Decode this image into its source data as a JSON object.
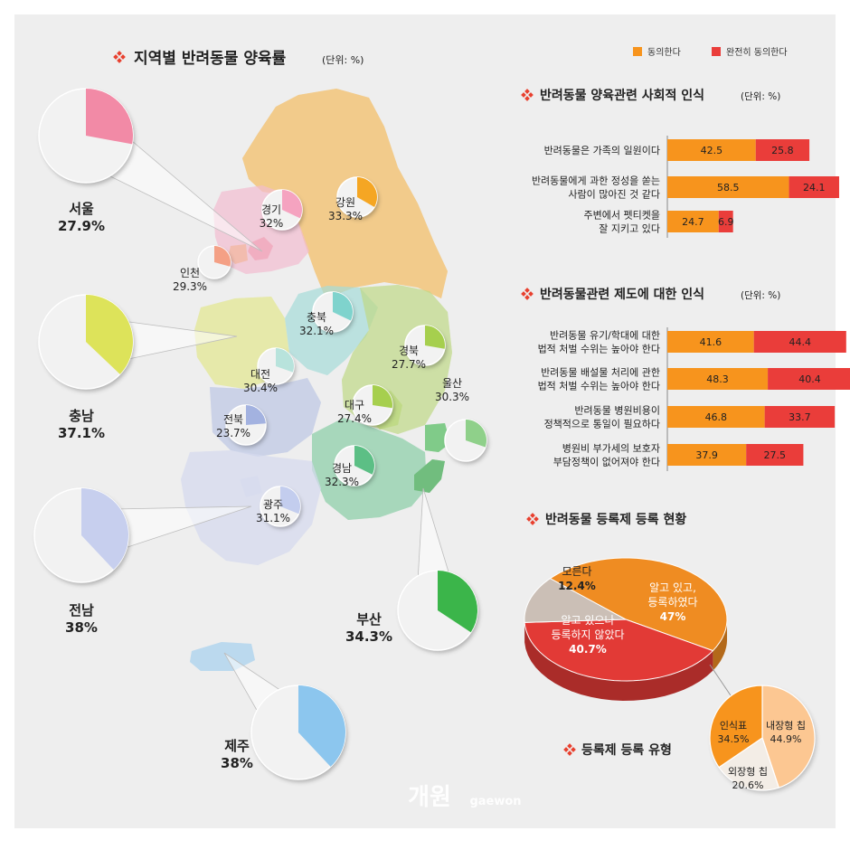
{
  "colors": {
    "agree": "#f7941d",
    "strongly_agree": "#ea3d3a",
    "pie_bg": "#f2f2f2",
    "title_icon": "#e8402f"
  },
  "map": {
    "title": "지역별 반려동물 양육률",
    "unit": "(단위: %)"
  },
  "legend": {
    "agree": "동의한다",
    "strongly_agree": "완전히 동의한다"
  },
  "section_titles": {
    "social": "반려동물 양육관련 사회적 인식",
    "social_unit": "(단위: %)",
    "policy": "반려동물관련 제도에 대한 인식",
    "policy_unit": "(단위: %)",
    "registration": "반려동물 등록제 등록 현황",
    "reg_type": "등록제 등록 유형"
  },
  "watermark": {
    "brand": "개원",
    "sub": "gaewon"
  },
  "chart_data": [
    {
      "type": "pie",
      "title": "지역별 반려동물 양육률",
      "regions": [
        {
          "label": "서울",
          "value": "27.9%",
          "pct": 27.9,
          "color": "#f28aa6"
        },
        {
          "label": "경기",
          "value": "32%",
          "pct": 32,
          "color": "#f5a3c0"
        },
        {
          "label": "강원",
          "value": "33.3%",
          "pct": 33.3,
          "color": "#f5a623"
        },
        {
          "label": "인천",
          "value": "29.3%",
          "pct": 29.3,
          "color": "#f4a085"
        },
        {
          "label": "충남",
          "value": "37.1%",
          "pct": 37.1,
          "color": "#dde35a"
        },
        {
          "label": "충북",
          "value": "32.1%",
          "pct": 32.1,
          "color": "#7fd3cd"
        },
        {
          "label": "경북",
          "value": "27.7%",
          "pct": 27.7,
          "color": "#a6cf4e"
        },
        {
          "label": "대전",
          "value": "30.4%",
          "pct": 30.4,
          "color": "#b8e3dc"
        },
        {
          "label": "울산",
          "value": "30.3%",
          "pct": 30.3,
          "color": "#8fd08a"
        },
        {
          "label": "대구",
          "value": "27.4%",
          "pct": 27.4,
          "color": "#a6cf4e"
        },
        {
          "label": "전북",
          "value": "23.7%",
          "pct": 23.7,
          "color": "#a3b2e0"
        },
        {
          "label": "경남",
          "value": "32.3%",
          "pct": 32.3,
          "color": "#5cbf85"
        },
        {
          "label": "광주",
          "value": "31.1%",
          "pct": 31.1,
          "color": "#c3cdee"
        },
        {
          "label": "전남",
          "value": "38%",
          "pct": 38,
          "color": "#c7cfee"
        },
        {
          "label": "부산",
          "value": "34.3%",
          "pct": 34.3,
          "color": "#3bb54a"
        },
        {
          "label": "제주",
          "value": "38%",
          "pct": 38,
          "color": "#8cc6ee"
        }
      ]
    },
    {
      "type": "bar",
      "title": "반려동물 양육관련 사회적 인식",
      "stacked": true,
      "categories": [
        [
          "반려동물은 가족의 일원이다"
        ],
        [
          "반려동물에게 과한 정성을 쏟는",
          "사람이 많아진 것 같다"
        ],
        [
          "주변에서 펫티켓을",
          "잘 지키고 있다"
        ]
      ],
      "series": [
        {
          "name": "동의한다",
          "values": [
            42.5,
            58.5,
            24.7
          ]
        },
        {
          "name": "완전히 동의한다",
          "values": [
            25.8,
            24.1,
            6.9
          ]
        }
      ]
    },
    {
      "type": "bar",
      "title": "반려동물관련 제도에 대한 인식",
      "stacked": true,
      "categories": [
        [
          "반려동물 유기/학대에 대한",
          "법적 처벌 수위는 높아야 한다"
        ],
        [
          "반려동물 배설물 처리에 관한",
          "법적 처벌 수위는 높아야 한다"
        ],
        [
          "반려동물 병원비용이",
          "정책적으로 통일이 필요하다"
        ],
        [
          "병원비 부가세의 보호자",
          "부담정책이 없어져야 한다"
        ]
      ],
      "series": [
        {
          "name": "동의한다",
          "values": [
            41.6,
            48.3,
            46.8,
            37.9
          ]
        },
        {
          "name": "완전히 동의한다",
          "values": [
            44.4,
            40.4,
            33.7,
            27.5
          ]
        }
      ]
    },
    {
      "type": "pie",
      "title": "반려동물 등록제 등록 현황",
      "slices": [
        {
          "label": [
            "알고 있고,",
            "등록하였다"
          ],
          "value": "47%",
          "pct": 47,
          "color": "#ef8c22"
        },
        {
          "label": [
            "알고 있으나",
            "등록하지 않았다"
          ],
          "value": "40.7%",
          "pct": 40.7,
          "color": "#e23a36"
        },
        {
          "label": [
            "모른다"
          ],
          "value": "12.4%",
          "pct": 12.4,
          "color": "#cbbfb6"
        }
      ]
    },
    {
      "type": "pie",
      "title": "등록제 등록 유형",
      "slices": [
        {
          "label": "내장형 칩",
          "value": "44.9%",
          "pct": 44.9,
          "color": "#fcc792"
        },
        {
          "label": "외장형 칩",
          "value": "20.6%",
          "pct": 20.6,
          "color": "#f3ede6"
        },
        {
          "label": "인식표",
          "value": "34.5%",
          "pct": 34.5,
          "color": "#f7941d"
        }
      ]
    }
  ]
}
